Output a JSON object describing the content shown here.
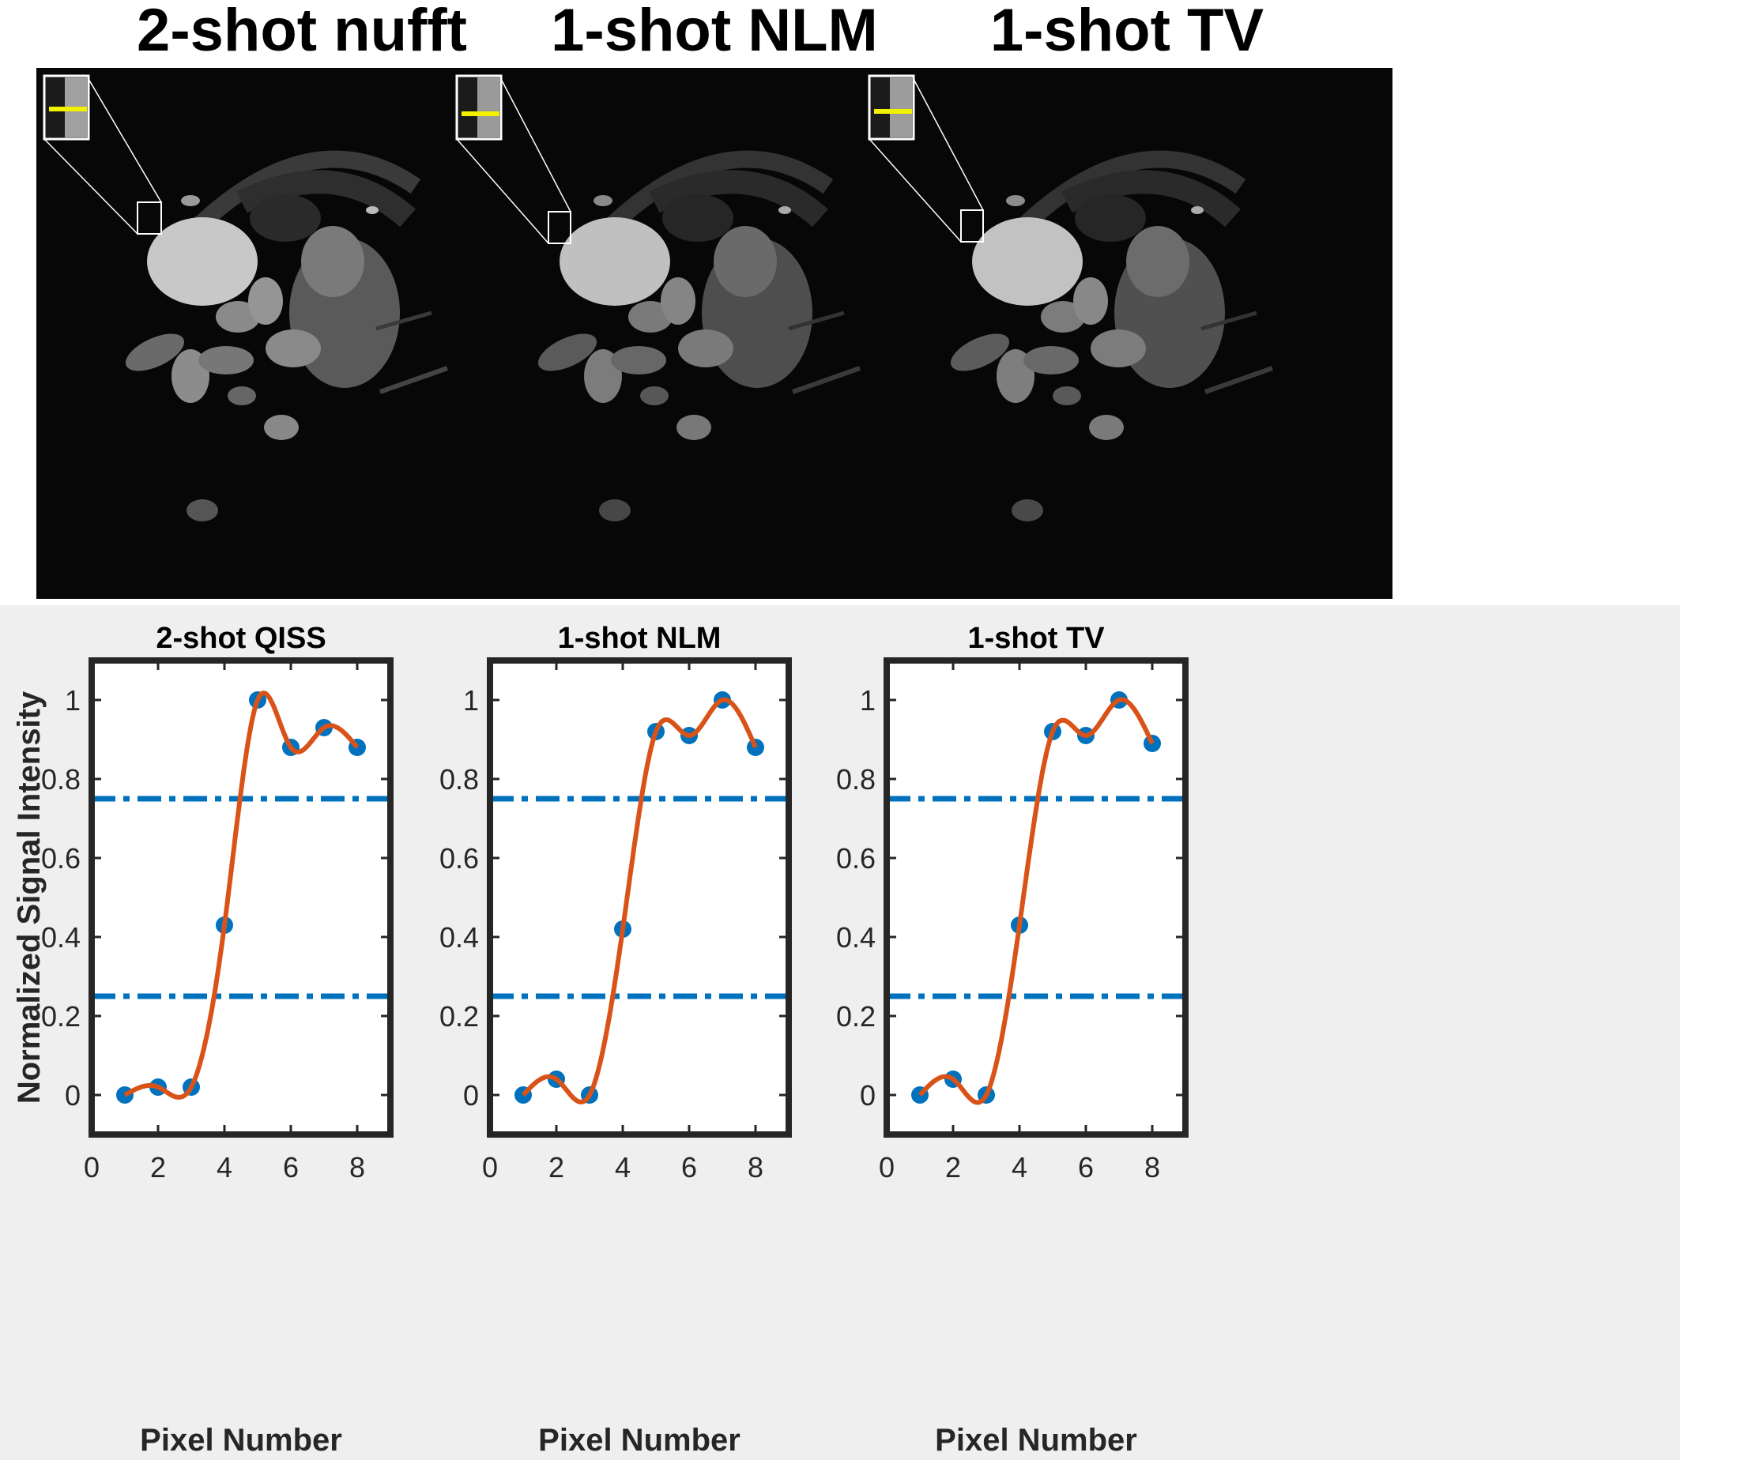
{
  "image_panels": [
    {
      "title": "2-shot nufft"
    },
    {
      "title": "1-shot NLM"
    },
    {
      "title": "1-shot TV"
    }
  ],
  "colors": {
    "data_points": "#0072bd",
    "fit_curve": "#d95319",
    "threshold_lines": "#0072bd",
    "profile_line": "#f2f200",
    "chart_background": "#efefef"
  },
  "chart_data": [
    {
      "type": "scatter",
      "title": "2-shot QISS",
      "xlabel": "Pixel Number",
      "ylabel": "Normalized Signal Intensity",
      "xlim": [
        0,
        9
      ],
      "ylim": [
        -0.1,
        1.1
      ],
      "xticks": [
        0,
        2,
        4,
        6,
        8
      ],
      "yticks": [
        0,
        0.2,
        0.4,
        0.6,
        0.8,
        1
      ],
      "yticklabels": [
        "0",
        "0.2",
        "0.4",
        "0.6",
        "0.8",
        "1"
      ],
      "x": [
        1,
        2,
        3,
        4,
        5,
        6,
        7,
        8
      ],
      "y": [
        0,
        0.02,
        0.02,
        0.43,
        1.0,
        0.88,
        0.93,
        0.88
      ],
      "fit_curve_y": [
        0,
        0.02,
        0.02,
        0.43,
        1.0,
        0.88,
        0.93,
        0.88
      ],
      "reference_lines_y": [
        0.25,
        0.75
      ],
      "grid": false
    },
    {
      "type": "scatter",
      "title": "1-shot NLM",
      "xlabel": "Pixel Number",
      "ylabel": "",
      "xlim": [
        0,
        9
      ],
      "ylim": [
        -0.1,
        1.1
      ],
      "xticks": [
        0,
        2,
        4,
        6,
        8
      ],
      "yticks": [
        0,
        0.2,
        0.4,
        0.6,
        0.8,
        1
      ],
      "yticklabels": [
        "0",
        "0.2",
        "0.4",
        "0.6",
        "0.8",
        "1"
      ],
      "x": [
        1,
        2,
        3,
        4,
        5,
        6,
        7,
        8
      ],
      "y": [
        0,
        0.04,
        0,
        0.42,
        0.92,
        0.91,
        1.0,
        0.88
      ],
      "fit_curve_y": [
        0,
        0.04,
        0,
        0.42,
        0.92,
        0.91,
        1.0,
        0.88
      ],
      "reference_lines_y": [
        0.25,
        0.75
      ],
      "grid": false
    },
    {
      "type": "scatter",
      "title": "1-shot TV",
      "xlabel": "Pixel Number",
      "ylabel": "",
      "xlim": [
        0,
        9
      ],
      "ylim": [
        -0.1,
        1.1
      ],
      "xticks": [
        0,
        2,
        4,
        6,
        8
      ],
      "yticks": [
        0,
        0.2,
        0.4,
        0.6,
        0.8,
        1
      ],
      "yticklabels": [
        "0",
        "0.2",
        "0.4",
        "0.6",
        "0.8",
        "1"
      ],
      "x": [
        1,
        2,
        3,
        4,
        5,
        6,
        7,
        8
      ],
      "y": [
        0,
        0.04,
        0,
        0.43,
        0.92,
        0.91,
        1.0,
        0.89
      ],
      "fit_curve_y": [
        0,
        0.04,
        0,
        0.43,
        0.92,
        0.91,
        1.0,
        0.89
      ],
      "reference_lines_y": [
        0.25,
        0.75
      ],
      "grid": false
    }
  ]
}
